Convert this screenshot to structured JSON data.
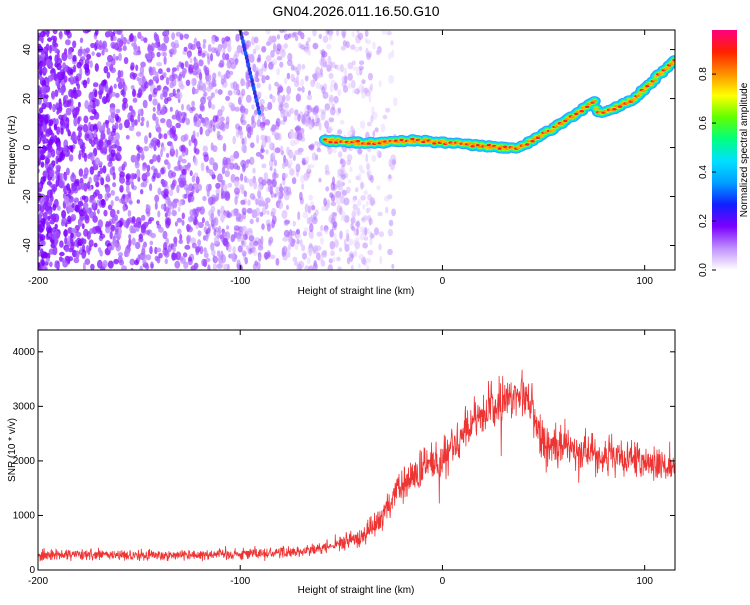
{
  "title": "GN04.2026.011.16.50.G10",
  "chart_data": [
    {
      "type": "heatmap",
      "xlabel": "Height of straight line (km)",
      "ylabel": "Frequency (Hz)",
      "xlim": [
        -200,
        115
      ],
      "ylim": [
        -50,
        48
      ],
      "x_ticks": [
        -200,
        -100,
        0,
        100
      ],
      "y_ticks": [
        -40,
        -20,
        0,
        20,
        40
      ],
      "colorbar": {
        "label": "Normalized spectral amplitude",
        "range": [
          0,
          0.98
        ],
        "ticks": [
          0.0,
          0.2,
          0.4,
          0.6,
          0.8
        ],
        "colors": [
          "#ffffff",
          "#c090ff",
          "#7a00ff",
          "#1020ff",
          "#00a0ff",
          "#00e0ff",
          "#00ff80",
          "#60ff00",
          "#ffff00",
          "#ff9000",
          "#ff2000",
          "#ff0080"
        ]
      },
      "noise_region_x": [
        -200,
        -35
      ],
      "trace_start_x": -58,
      "trace": {
        "x": [
          -58,
          -45,
          -30,
          -15,
          0,
          15,
          30,
          38,
          45,
          55,
          65,
          75,
          77,
          85,
          95,
          105,
          115
        ],
        "y": [
          3,
          2,
          2,
          3,
          2,
          1,
          0,
          0,
          3,
          8,
          13,
          19,
          14,
          16,
          20,
          28,
          36
        ]
      },
      "grid": false,
      "legend": "none"
    },
    {
      "type": "line",
      "xlabel": "Height of straight line (km)",
      "ylabel": "SNR (10 * v/v)",
      "xlim": [
        -200,
        115
      ],
      "ylim": [
        0,
        4400
      ],
      "x_ticks": [
        -200,
        -100,
        0,
        100
      ],
      "y_ticks": [
        0,
        1000,
        2000,
        3000,
        4000
      ],
      "color": "#ee3333",
      "envelope": {
        "x": [
          -200,
          -150,
          -100,
          -80,
          -60,
          -50,
          -40,
          -30,
          -20,
          0,
          20,
          30,
          40,
          45,
          50,
          60,
          80,
          100,
          115
        ],
        "y": [
          280,
          270,
          300,
          320,
          380,
          500,
          600,
          1000,
          1550,
          2100,
          2900,
          3050,
          3300,
          2900,
          2250,
          2300,
          2100,
          1950,
          1900
        ]
      },
      "spread": {
        "x": [
          -200,
          -60,
          -40,
          -20,
          0,
          30,
          45,
          60,
          115
        ],
        "y": [
          150,
          170,
          250,
          500,
          620,
          650,
          600,
          550,
          450
        ]
      },
      "grid": false,
      "legend": "none"
    }
  ]
}
